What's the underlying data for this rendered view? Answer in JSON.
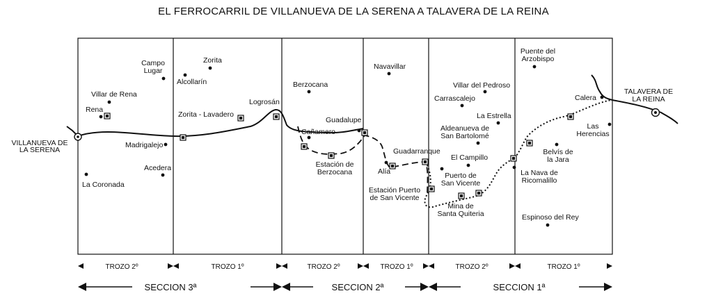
{
  "title": "EL FERROCARRIL DE VILLANUEVA DE LA SERENA A TALAVERA DE LA REINA",
  "endpoints": {
    "start": [
      "VILLANUEVA DE",
      "LA SERENA"
    ],
    "end": [
      "TALAVERA DE",
      "LA REINA"
    ]
  },
  "places": {
    "campo_lugar": [
      "Campo",
      "Lugar"
    ],
    "zorita": "Zorita",
    "alcollarin": "Alcollarín",
    "villar_de_rena": "Villar de Rena",
    "rena": "Rena",
    "zorita_lavadero": "Zorita - Lavadero",
    "logrosan": "Logrosán",
    "madrigalejo": "Madrigalejo",
    "acedera": "Acedera",
    "la_coronada": "La  Coronada",
    "berzocana": "Berzocana",
    "guadalupe": "Guadalupe",
    "canamero": "Cañamero",
    "estacion_berzocana": [
      "Estación de",
      "Berzocana"
    ],
    "navavillar": "Navavillar",
    "guadarranque": "Guadarranque",
    "alia": "Alía",
    "estacion_puerto_san_vicente": [
      "Estación Puerto",
      "de San Vicente"
    ],
    "puente_del_arzobispo": [
      "Puente del",
      "Arzobispo"
    ],
    "villar_del_pedroso": "Villar del Pedroso",
    "carrascalejo": "Carrascalejo",
    "la_estrella": "La Estrella",
    "aldeanueva": [
      "Aldeanueva de",
      "San Bartolomé"
    ],
    "el_campillo": "El Campillo",
    "puerto_san_vicente": [
      "Puerto de",
      "San Vicente"
    ],
    "mina_santa_quiteria": [
      "Mina de",
      "Santa Quiteria"
    ],
    "calera": "Calera",
    "las_herencias": [
      "Las",
      "Herencias"
    ],
    "belvis_de_la_jara": [
      "Belvís de",
      "la Jara"
    ],
    "la_nava_de_ricomalillo": [
      "La Nava de",
      "Ricomalillo"
    ],
    "espinoso_del_rey": "Espinoso del Rey"
  },
  "trozos": [
    "TROZO 2º",
    "TROZO 1º",
    "TROZO 2º",
    "TROZO 1º",
    "TROZO 2º",
    "TROZO 1º"
  ],
  "secciones": [
    "SECCION 3ª",
    "SECCION 2ª",
    "SECCION 1ª"
  ]
}
